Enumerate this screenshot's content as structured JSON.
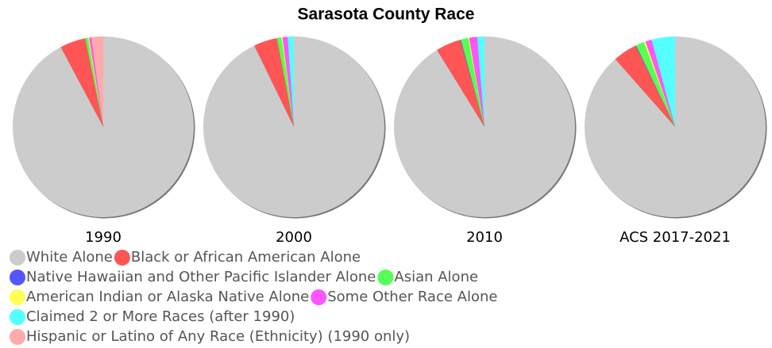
{
  "chart_data": {
    "type": "pie",
    "title": "Sarasota County Race",
    "categories": [
      "1990",
      "2000",
      "2010",
      "ACS 2017-2021"
    ],
    "series": [
      {
        "name": "White Alone",
        "color": "#cccccc",
        "values": [
          92.5,
          92.8,
          91.2,
          88.5
        ]
      },
      {
        "name": "Black or African American Alone",
        "color": "#ff5555",
        "values": [
          4.6,
          4.2,
          4.5,
          4.3
        ]
      },
      {
        "name": "Native Hawaiian and Other Pacific Islander Alone",
        "color": "#5555ff",
        "values": [
          0.0,
          0.0,
          0.1,
          0.1
        ]
      },
      {
        "name": "Asian Alone",
        "color": "#55ff55",
        "values": [
          0.5,
          0.8,
          1.3,
          1.5
        ]
      },
      {
        "name": "American Indian or Alaska Native Alone",
        "color": "#ffff55",
        "values": [
          0.2,
          0.2,
          0.2,
          0.3
        ]
      },
      {
        "name": "Some Other Race Alone",
        "color": "#ff55ff",
        "values": [
          0.4,
          0.9,
          1.4,
          1.1
        ]
      },
      {
        "name": "Claimed 2 or More Races (after 1990)",
        "color": "#55ffff",
        "values": [
          null,
          1.1,
          1.3,
          4.2
        ]
      },
      {
        "name": "Hispanic or Latino of Any Race (Ethnicity) (1990 only)",
        "color": "#ffaaaa",
        "values": [
          2.1,
          null,
          null,
          null
        ]
      }
    ]
  }
}
